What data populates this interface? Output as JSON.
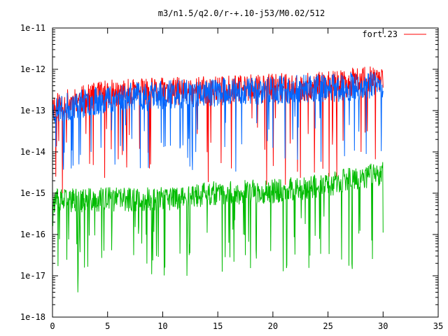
{
  "chart_data": {
    "type": "line",
    "title": "m3/n1.5/q2.0/r-+.10-j53/M0.02/512",
    "xlabel": "",
    "ylabel": "",
    "xlim": [
      0,
      35
    ],
    "ylim_log10": [
      -18,
      -11
    ],
    "y_scale": "log",
    "grid": false,
    "legend_position": "top-right",
    "x_tick_values": [
      0,
      5,
      10,
      15,
      20,
      25,
      30,
      35
    ],
    "x_tick_labels": [
      "0",
      "5",
      "10",
      "15",
      "20",
      "25",
      "30",
      "35"
    ],
    "y_tick_exponents": [
      -11,
      -12,
      -13,
      -14,
      -15,
      -16,
      -17,
      -18
    ],
    "y_tick_labels": [
      "1e-11",
      "1e-12",
      "1e-13",
      "1e-14",
      "1e-15",
      "1e-16",
      "1e-17",
      "1e-18"
    ],
    "series": [
      {
        "name": "fort.23",
        "color": "#ff0000",
        "style": "noisy",
        "x_range": [
          0,
          30
        ],
        "trend_log10": [
          [
            0,
            -12.9
          ],
          [
            5,
            -12.6
          ],
          [
            15,
            -12.5
          ],
          [
            25,
            -12.4
          ],
          [
            30,
            -12.2
          ]
        ],
        "noise_amp": 0.35,
        "dip_probability": 0.04,
        "dip_min_log10": -14.8,
        "seed": 11,
        "min_spikes": [
          [
            0.3,
            -14.6
          ],
          [
            0.9,
            -15.0
          ],
          [
            8.8,
            -14.4
          ],
          [
            8.9,
            -14.3
          ],
          [
            25.1,
            -14.6
          ],
          [
            25.8,
            -14.6
          ],
          [
            28.0,
            -14.0
          ]
        ]
      },
      {
        "name": "",
        "color": "#0066ff",
        "style": "noisy",
        "x_range": [
          0,
          30
        ],
        "trend_log10": [
          [
            0,
            -13.0
          ],
          [
            5,
            -12.7
          ],
          [
            15,
            -12.55
          ],
          [
            25,
            -12.45
          ],
          [
            30,
            -12.4
          ]
        ],
        "noise_amp": 0.35,
        "dip_probability": 0.05,
        "dip_min_log10": -14.5,
        "seed": 23,
        "min_spikes": [
          [
            1.7,
            -14.4
          ],
          [
            2.4,
            -14.3
          ],
          [
            3.5,
            -14.0
          ],
          [
            4.4,
            -13.9
          ],
          [
            20.0,
            -13.9
          ],
          [
            21.8,
            -13.7
          ]
        ]
      },
      {
        "name": "",
        "color": "#00bb00",
        "style": "noisy",
        "x_range": [
          0,
          30
        ],
        "trend_log10": [
          [
            0,
            -15.2
          ],
          [
            5,
            -15.15
          ],
          [
            10,
            -15.15
          ],
          [
            15,
            -15.0
          ],
          [
            20,
            -14.95
          ],
          [
            25,
            -14.8
          ],
          [
            30,
            -14.5
          ]
        ],
        "noise_amp": 0.3,
        "dip_probability": 0.07,
        "dip_min_log10": -17.0,
        "seed": 37,
        "min_spikes": [
          [
            2.3,
            -17.4
          ],
          [
            2.9,
            -16.8
          ],
          [
            10.2,
            -16.8
          ],
          [
            12.2,
            -17.0
          ],
          [
            12.4,
            -16.5
          ],
          [
            15.4,
            -16.9
          ],
          [
            16.0,
            -16.2
          ],
          [
            17.5,
            -16.5
          ],
          [
            19.8,
            -16.4
          ]
        ]
      }
    ]
  }
}
